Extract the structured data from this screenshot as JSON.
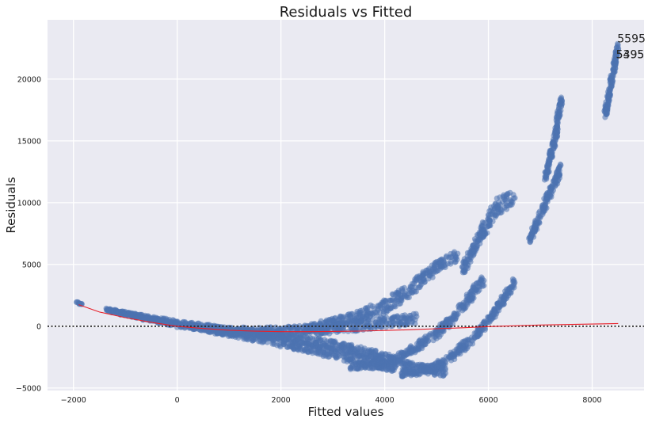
{
  "chart_data": {
    "type": "scatter",
    "title": "Residuals vs Fitted",
    "xlabel": "Fitted values",
    "ylabel": "Residuals",
    "xlim": [
      -2500,
      9000
    ],
    "ylim": [
      -5200,
      24800
    ],
    "xticks": [
      -2000,
      0,
      2000,
      4000,
      6000,
      8000
    ],
    "yticks": [
      -5000,
      0,
      5000,
      10000,
      15000,
      20000
    ],
    "xtick_labels": [
      "−2000",
      "0",
      "2000",
      "4000",
      "6000",
      "8000"
    ],
    "ytick_labels": [
      "−5000",
      "0",
      "5000",
      "10000",
      "15000",
      "20000"
    ],
    "grid": true,
    "background": "#EAEAF2",
    "point_color": "#4C72B0",
    "lowess_color": "#E8202A",
    "zero_line": 0,
    "lowess": {
      "x": [
        -1900,
        -1500,
        -1000,
        -500,
        0,
        500,
        1000,
        1500,
        2000,
        2500,
        3000,
        3500,
        4000,
        4500,
        5000,
        5500,
        6000,
        6500,
        7000,
        7500,
        8000,
        8500
      ],
      "y": [
        1750,
        1150,
        700,
        320,
        0,
        -180,
        -320,
        -400,
        -440,
        -440,
        -420,
        -390,
        -340,
        -280,
        -200,
        -120,
        -30,
        40,
        100,
        140,
        180,
        220
      ]
    },
    "series": [
      {
        "bands": [
          {
            "x": [
              -1950,
              -1850
            ],
            "y": [
              1950,
              1800
            ],
            "w": [
              60,
              60
            ]
          },
          {
            "x": [
              -1350,
              0,
              800,
              1600,
              2400,
              3200,
              4200
            ],
            "y": [
              1350,
              250,
              -300,
              -900,
              -1600,
              -2400,
              -3300
            ],
            "w": [
              100,
              200,
              350,
              400,
              400,
              400,
              400
            ]
          },
          {
            "x": [
              -1300,
              0,
              1000,
              2000,
              3000,
              4000,
              4600
            ],
            "y": [
              1250,
              100,
              -400,
              -400,
              -200,
              300,
              600
            ],
            "w": [
              100,
              200,
              300,
              350,
              400,
              450,
              450
            ]
          },
          {
            "x": [
              1000,
              2000,
              3000,
              3800,
              4700,
              5200
            ],
            "y": [
              -400,
              -800,
              -1500,
              -2300,
              -3500,
              -3700
            ],
            "w": [
              300,
              300,
              350,
              400,
              400,
              350
            ]
          },
          {
            "x": [
              2500,
              3000,
              3500,
              4000,
              4500,
              5000,
              5400
            ],
            "y": [
              -200,
              300,
              800,
              1600,
              3000,
              4800,
              5700
            ],
            "w": [
              300,
              350,
              450,
              550,
              600,
              500,
              400
            ]
          },
          {
            "x": [
              3300,
              4000,
              4500,
              5000,
              5500,
              5900
            ],
            "y": [
              -3200,
              -3100,
              -2000,
              -600,
              1500,
              3800
            ],
            "w": [
              300,
              300,
              350,
              400,
              450,
              450
            ]
          },
          {
            "x": [
              4300,
              4800,
              5200,
              5700,
              6100,
              6500
            ],
            "y": [
              -3800,
              -3600,
              -2800,
              -1000,
              1000,
              3500
            ],
            "w": [
              300,
              300,
              350,
              400,
              350,
              400
            ]
          },
          {
            "x": [
              5500,
              5900,
              6200,
              6500
            ],
            "y": [
              4500,
              7800,
              9800,
              10500
            ],
            "w": [
              450,
              650,
              700,
              600
            ]
          },
          {
            "x": [
              6800,
              7100,
              7400
            ],
            "y": [
              7000,
              10000,
              12800
            ],
            "w": [
              300,
              450,
              450
            ]
          },
          {
            "x": [
              7100,
              7300,
              7400
            ],
            "y": [
              12000,
              15500,
              18400
            ],
            "w": [
              220,
              250,
              250
            ]
          },
          {
            "x": [
              8250,
              8400,
              8500
            ],
            "y": [
              17000,
              20500,
              22800
            ],
            "w": [
              180,
              180,
              180
            ]
          }
        ]
      }
    ],
    "annotations": [
      {
        "label": "5595",
        "x": 8485,
        "y": 23300
      },
      {
        "label": "5495",
        "x": 8460,
        "y": 22000
      },
      {
        "label": "5395",
        "x": 8460,
        "y": 22000
      }
    ]
  }
}
